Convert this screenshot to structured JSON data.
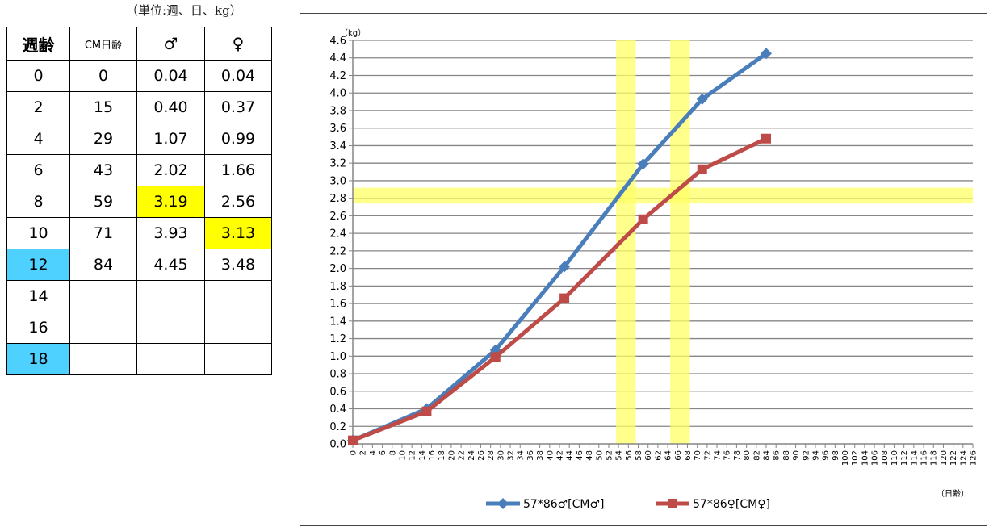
{
  "unit_note": "（単位:週、日、kg）",
  "table": {
    "headers": [
      "週齢",
      "CM日齢",
      "♂",
      "♀"
    ],
    "rows": [
      {
        "week": "0",
        "days": "0",
        "male": "0.04",
        "female": "0.04"
      },
      {
        "week": "2",
        "days": "15",
        "male": "0.40",
        "female": "0.37"
      },
      {
        "week": "4",
        "days": "29",
        "male": "1.07",
        "female": "0.99"
      },
      {
        "week": "6",
        "days": "43",
        "male": "2.02",
        "female": "1.66"
      },
      {
        "week": "8",
        "days": "59",
        "male": "3.19",
        "female": "2.56"
      },
      {
        "week": "10",
        "days": "71",
        "male": "3.93",
        "female": "3.13"
      },
      {
        "week": "12",
        "days": "84",
        "male": "4.45",
        "female": "3.48"
      },
      {
        "week": "14",
        "days": "",
        "male": "",
        "female": ""
      },
      {
        "week": "16",
        "days": "",
        "male": "",
        "female": ""
      },
      {
        "week": "18",
        "days": "",
        "male": "",
        "female": ""
      }
    ],
    "highlight_colors": {
      "yellow": "#ffff00",
      "blue": "#4fd1ff"
    },
    "highlights": [
      {
        "row": 4,
        "col": "male",
        "color": "yellow"
      },
      {
        "row": 5,
        "col": "female",
        "color": "yellow"
      },
      {
        "row": 6,
        "col": "week",
        "color": "blue"
      },
      {
        "row": 9,
        "col": "week",
        "color": "blue"
      }
    ]
  },
  "chart_data": {
    "type": "line",
    "y_unit": "（kg）",
    "x_unit": "（日齢）",
    "xlim": [
      0,
      126
    ],
    "x_tick_step": 2,
    "ylim": [
      0.0,
      4.6
    ],
    "y_tick_step": 0.2,
    "grid": true,
    "legend_position": "bottom",
    "series": [
      {
        "name": "57*86♂[CM♂]",
        "color": "#4a7ebb",
        "marker": "diamond",
        "x": [
          0,
          15,
          29,
          43,
          59,
          71,
          84
        ],
        "y": [
          0.04,
          0.4,
          1.07,
          2.02,
          3.19,
          3.93,
          4.45
        ]
      },
      {
        "name": "57*86♀[CM♀]",
        "color": "#be4b48",
        "marker": "square",
        "x": [
          0,
          15,
          29,
          43,
          59,
          71,
          84
        ],
        "y": [
          0.04,
          0.37,
          0.99,
          1.66,
          2.56,
          3.13,
          3.48
        ]
      }
    ],
    "highlight_band_color": "#ffff66",
    "highlight_bands": [
      {
        "axis": "y",
        "from": 2.74,
        "to": 2.92
      },
      {
        "axis": "x",
        "from": 53.5,
        "to": 57.5
      },
      {
        "axis": "x",
        "from": 64.5,
        "to": 68.5
      }
    ]
  }
}
